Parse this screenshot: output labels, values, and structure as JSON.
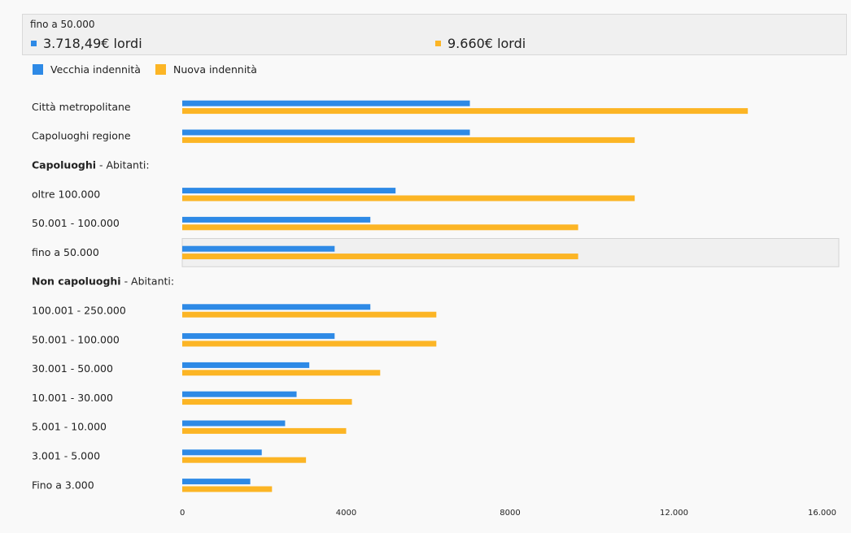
{
  "tooltip": {
    "title": "fino a 50.000",
    "old_value": "3.718,49€ lordi",
    "new_value": "9.660€ lordi"
  },
  "legend": {
    "old_label": "Vecchia indennità",
    "new_label": "Nuova indennità"
  },
  "colors": {
    "old": "#2e8ae6",
    "new": "#fcb525",
    "highlight_bg": "#f0f0f0",
    "highlight_border": "#d4d4d4"
  },
  "chart_data": {
    "type": "bar",
    "orientation": "horizontal",
    "xlim": [
      0,
      16000
    ],
    "x_ticks": [
      "0",
      "4000",
      "8000",
      "12.000",
      "16.000"
    ],
    "legend_position": "top-left",
    "grid": false,
    "highlighted_row": "fino a 50.000",
    "series_names": [
      "Vecchia indennità",
      "Nuova indennità"
    ],
    "rows": [
      {
        "label": "Città metropolitane",
        "old": 7018,
        "new": 13800
      },
      {
        "label": "Capoluoghi regione",
        "old": 7018,
        "new": 11040
      },
      {
        "label": "",
        "bold": "Capoluoghi",
        "suffix": " - Abitanti:",
        "heading": true
      },
      {
        "label": "oltre 100.000",
        "old": 5205,
        "new": 11040
      },
      {
        "label": "50.001 - 100.000",
        "old": 4590,
        "new": 9660
      },
      {
        "label": "fino a 50.000",
        "old": 3718.49,
        "new": 9660
      },
      {
        "label": "",
        "bold": "Non capoluoghi",
        "suffix": " - Abitanti:",
        "heading": true
      },
      {
        "label": "100.001 - 250.000",
        "old": 4590,
        "new": 6200
      },
      {
        "label": "50.001 - 100.000",
        "old": 3718,
        "new": 6200
      },
      {
        "label": "30.001 - 50.000",
        "old": 3100,
        "new": 4830
      },
      {
        "label": "10.001 - 30.000",
        "old": 2790,
        "new": 4140
      },
      {
        "label": "5.001 - 10.000",
        "old": 2510,
        "new": 4000
      },
      {
        "label": "3.001 - 5.000",
        "old": 1940,
        "new": 3020
      },
      {
        "label": "Fino a 3.000",
        "old": 1660,
        "new": 2190
      }
    ]
  }
}
